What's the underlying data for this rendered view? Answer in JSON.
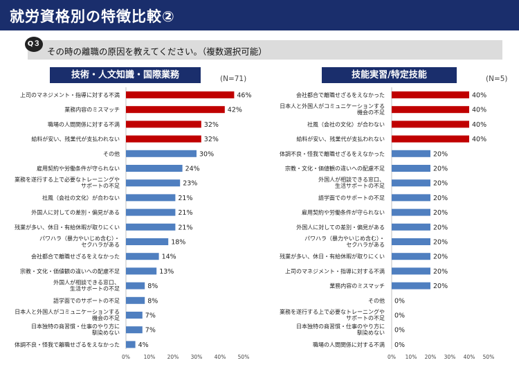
{
  "header": {
    "title": "就労資格別の特徴比較②"
  },
  "question": {
    "badge": "Q３",
    "text": "その時の離職の原因を教えてください。（複数選択可能）"
  },
  "colors": {
    "highlight": "#c00000",
    "normal": "#4f7fc0",
    "header": "#1a2e6c"
  },
  "chart_data": [
    {
      "type": "bar",
      "orientation": "horizontal",
      "title": "技術・人文知識・国際業務",
      "n_label": "(N=71)",
      "categories": [
        "上司のマネジメント・指導に対する不満",
        "業務内容のミスマッチ",
        "職場の人間関係に対する不満",
        "給料が安い、残業代が支払われない",
        "その他",
        "雇用契約や労働条件が守られない",
        "業務を遂行する上で必要なトレーニングや\nサポートの不足",
        "社風（会社の文化）が合わない",
        "外国人に対しての差別・偏見がある",
        "残業が多い、休日・有給休暇が取りにくい",
        "パワハラ（暴力やいじめ含む）・\nセクハラがある",
        "会社都合で離職せざるをえなかった",
        "宗教・文化・価値観の違いへの配慮不足",
        "外国人が相談できる窓口、\n生活サポートの不足",
        "語学面でのサポートの不足",
        "日本人と外国人がコミュニケーションする\n機会の不足",
        "日本独特の商習慣・仕事のやり方に\n馴染めない",
        "体調不良・怪我で離職せざるをえなかった"
      ],
      "values": [
        46,
        42,
        32,
        32,
        30,
        24,
        23,
        21,
        21,
        21,
        18,
        14,
        13,
        8,
        8,
        7,
        7,
        4
      ],
      "value_labels": [
        "46%",
        "42%",
        "32%",
        "32%",
        "30%",
        "24%",
        "23%",
        "21%",
        "21%",
        "21%",
        "18%",
        "14%",
        "13%",
        "8%",
        "8%",
        "7%",
        "7%",
        "4%"
      ],
      "highlighted_count": 4,
      "xlim": [
        0,
        50
      ],
      "xticks": [
        "0%",
        "10%",
        "20%",
        "30%",
        "40%",
        "50%"
      ]
    },
    {
      "type": "bar",
      "orientation": "horizontal",
      "title": "技能実習/特定技能",
      "n_label": "(N=5)",
      "categories": [
        "会社都合で離職せざるをえなかった",
        "日本人と外国人がコミュニケーションする\n機会の不足",
        "社風（会社の文化）が合わない",
        "給料が安い、残業代が支払われない",
        "体調不良・怪我で離職せざるをえなかった",
        "宗教・文化・価値観の違いへの配慮不足",
        "外国人が相談できる窓口、\n生活サポートの不足",
        "語学面でのサポートの不足",
        "雇用契約や労働条件が守られない",
        "外国人に対しての差別・偏見がある",
        "パワハラ（暴力やいじめ含む）・\nセクハラがある",
        "残業が多い、休日・有給休暇が取りにくい",
        "上司のマネジメント・指導に対する不満",
        "業務内容のミスマッチ",
        "その他",
        "業務を遂行する上で必要なトレーニングや\nサポートの不足",
        "日本独特の商習慣・仕事のやり方に\n馴染めない",
        "職場の人間関係に対する不満"
      ],
      "values": [
        40,
        40,
        40,
        40,
        20,
        20,
        20,
        20,
        20,
        20,
        20,
        20,
        20,
        20,
        0,
        0,
        0,
        0
      ],
      "value_labels": [
        "40%",
        "40%",
        "40%",
        "40%",
        "20%",
        "20%",
        "20%",
        "20%",
        "20%",
        "20%",
        "20%",
        "20%",
        "20%",
        "20%",
        "0%",
        "0%",
        "0%",
        "0%"
      ],
      "highlighted_count": 4,
      "xlim": [
        0,
        50
      ],
      "xticks": [
        "0%",
        "10%",
        "20%",
        "30%",
        "40%",
        "50%"
      ]
    }
  ]
}
